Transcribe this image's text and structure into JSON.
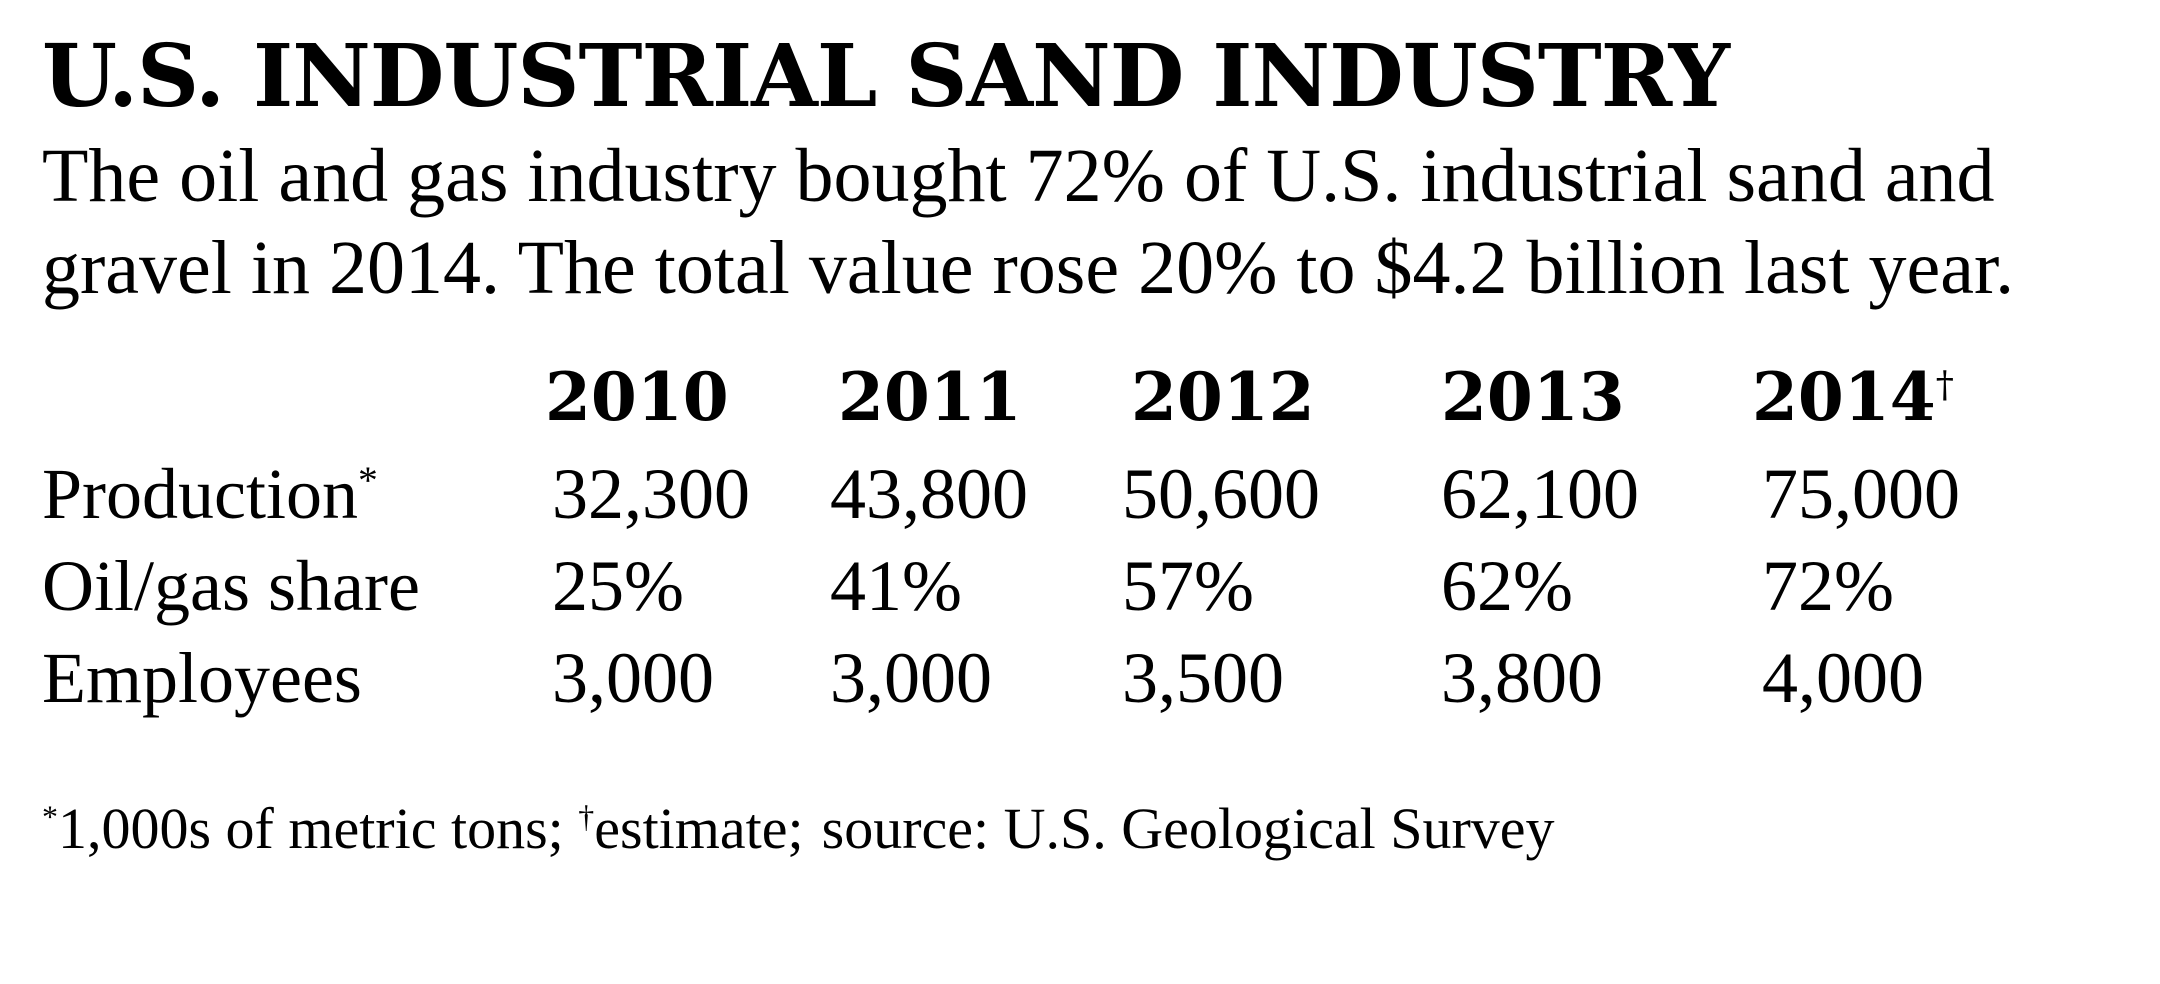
{
  "chart_data": {
    "type": "table",
    "title": "U.S. INDUSTRIAL SAND INDUSTRY",
    "subtitle_lines": [
      "The oil and gas industry bought 72% of U.S. industrial sand and",
      "gravel in 2014. The total value rose 20% to $4.2 billion last year."
    ],
    "columns": [
      "2010",
      "2011",
      "2012",
      "2013",
      "2014"
    ],
    "column_marks": [
      "",
      "",
      "",
      "",
      "†"
    ],
    "rows": [
      {
        "label": "Production",
        "mark": "*",
        "values": [
          "32,300",
          "43,800",
          "50,600",
          "62,100",
          "75,000"
        ]
      },
      {
        "label": "Oil/gas share",
        "mark": "",
        "values": [
          "25%",
          "41%",
          "57%",
          "62%",
          "72%"
        ]
      },
      {
        "label": "Employees",
        "mark": "",
        "values": [
          "3,000",
          "3,000",
          "3,500",
          "3,800",
          "4,000"
        ]
      }
    ],
    "footnotes": [
      {
        "mark": "*",
        "text": "1,000s of metric tons;"
      },
      {
        "mark": "†",
        "text": "estimate;"
      },
      {
        "mark": "",
        "text": "source: U.S. Geological Survey"
      }
    ]
  }
}
